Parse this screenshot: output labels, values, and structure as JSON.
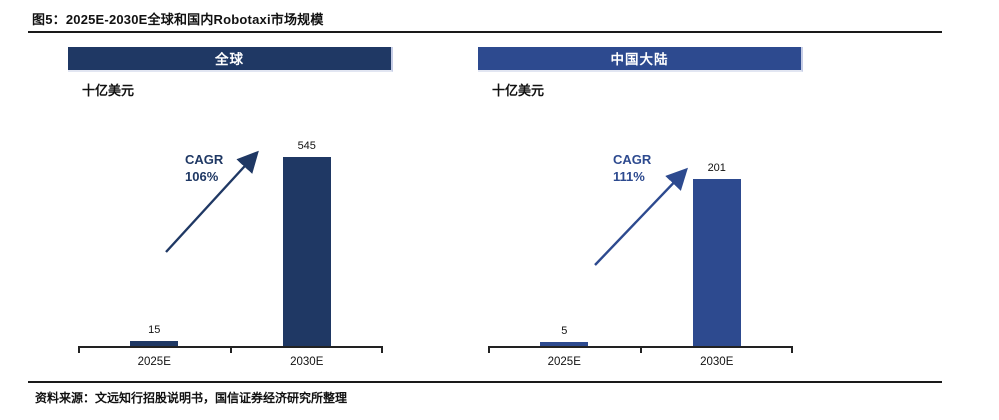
{
  "page": {
    "title": "图5：2025E-2030E全球和国内Robotaxi市场规模",
    "source": "资料来源：文远知行招股说明书，国信证券经济研究所整理"
  },
  "colors": {
    "global_accent": "#1f3864",
    "china_accent": "#2d4a8f",
    "axis": "#222222",
    "rule": "#1a1a1a",
    "header_text": "#ffffff"
  },
  "chart_data": [
    {
      "id": "global",
      "type": "bar",
      "title": "全球",
      "unit_label": "十亿美元",
      "categories": [
        "2025E",
        "2030E"
      ],
      "values": [
        15,
        545
      ],
      "ylim": [
        0,
        600
      ],
      "grid": false,
      "legend": "none",
      "bar_color": "#1f3864",
      "annotation": {
        "line1": "CAGR",
        "line2": "106%"
      }
    },
    {
      "id": "china",
      "type": "bar",
      "title": "中国大陆",
      "unit_label": "十亿美元",
      "categories": [
        "2025E",
        "2030E"
      ],
      "values": [
        5,
        201
      ],
      "ylim": [
        0,
        250
      ],
      "grid": false,
      "legend": "none",
      "bar_color": "#2d4a8f",
      "annotation": {
        "line1": "CAGR",
        "line2": "111%"
      }
    }
  ]
}
